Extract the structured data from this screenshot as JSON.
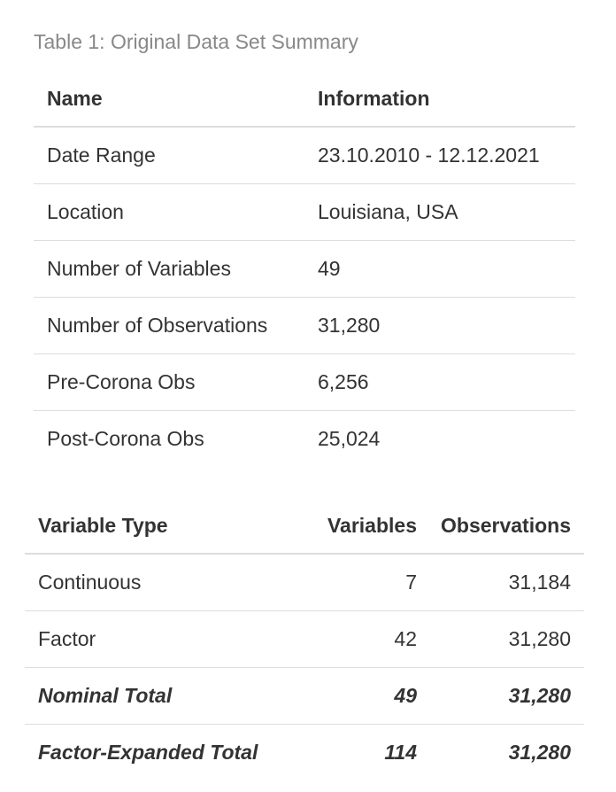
{
  "caption": "Table 1: Original Data Set Summary",
  "summary_table": {
    "headers": [
      "Name",
      "Information"
    ],
    "rows": [
      {
        "name": "Date Range",
        "info": "23.10.2010 - 12.12.2021"
      },
      {
        "name": "Location",
        "info": "Louisiana, USA"
      },
      {
        "name": "Number of Variables",
        "info": "49"
      },
      {
        "name": "Number of Observations",
        "info": "31,280"
      },
      {
        "name": "Pre-Corona Obs",
        "info": "6,256"
      },
      {
        "name": "Post-Corona Obs",
        "info": "25,024"
      }
    ]
  },
  "variable_table": {
    "headers": [
      "Variable Type",
      "Variables",
      "Observations"
    ],
    "rows": [
      {
        "type": "Continuous",
        "variables": "7",
        "observations": "31,184"
      },
      {
        "type": "Factor",
        "variables": "42",
        "observations": "31,280"
      },
      {
        "type": "Nominal Total",
        "variables": "49",
        "observations": "31,280"
      },
      {
        "type": "Factor-Expanded Total",
        "variables": "114",
        "observations": "31,280"
      }
    ]
  }
}
